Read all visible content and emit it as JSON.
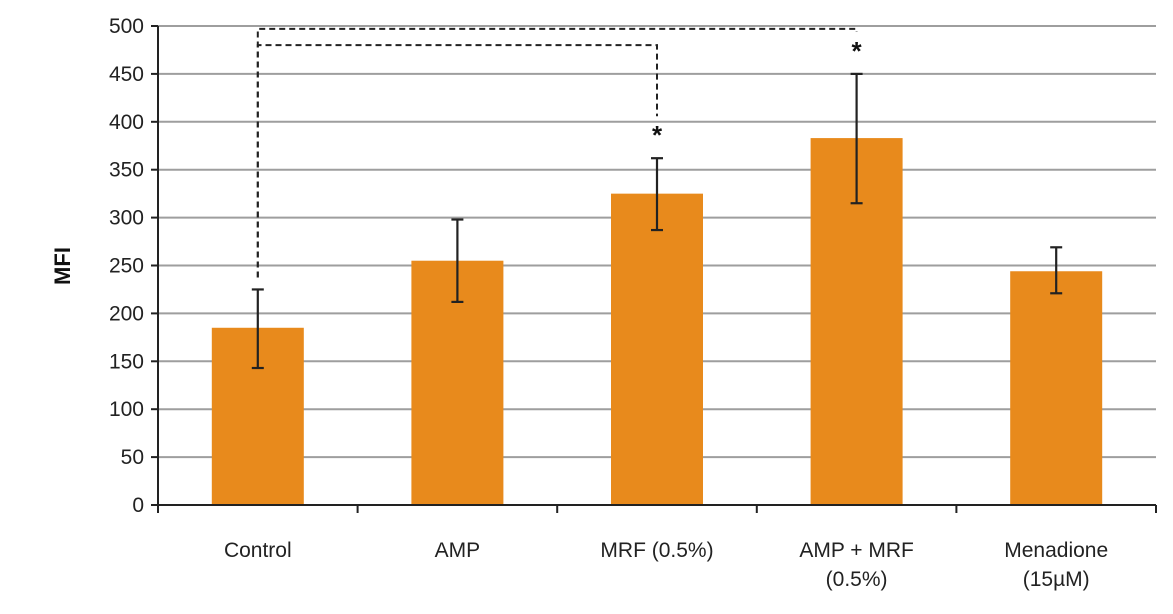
{
  "chart_data": {
    "type": "bar",
    "title": "",
    "xlabel": "",
    "ylabel": "MFI",
    "ylim": [
      0,
      500
    ],
    "yticks": [
      0,
      50,
      100,
      150,
      200,
      250,
      300,
      350,
      400,
      450,
      500
    ],
    "grid": true,
    "categories": [
      [
        "Control"
      ],
      [
        "AMP"
      ],
      [
        "MRF (0.5%)"
      ],
      [
        "AMP + MRF",
        "(0.5%)"
      ],
      [
        "Menadione",
        "(15µM)"
      ]
    ],
    "values": [
      185,
      255,
      325,
      383,
      244
    ],
    "error_low": [
      143,
      212,
      287,
      315,
      221
    ],
    "error_high": [
      225,
      298,
      362,
      450,
      269
    ],
    "significance": [
      {
        "from": 0,
        "to": 2,
        "label": "*",
        "bracket_level": 480
      },
      {
        "from": 0,
        "to": 3,
        "label": "*",
        "bracket_level": 497
      }
    ],
    "colors": {
      "bar": "#E88A1C",
      "grid": "#9E9E9E",
      "axis": "#222222",
      "errorbar": "#222222",
      "bracket": "#222222"
    }
  }
}
